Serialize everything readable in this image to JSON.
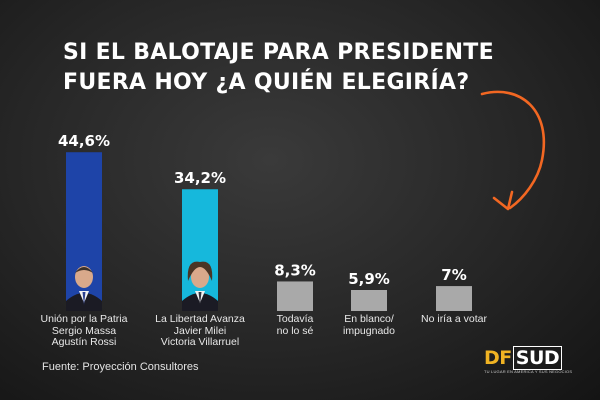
{
  "title": {
    "line1": "SI EL BALOTAJE PARA PRESIDENTE",
    "line2": "FUERA HOY ¿A QUIÉN ELEGIRÍA?"
  },
  "source": "Fuente:  Proyección Consultores",
  "logo": {
    "df": "DF",
    "sud": "SUD",
    "tagline": "TU LUGAR EN AMÉRICA Y SUS NEGOCIOS"
  },
  "colors": {
    "massa": "#1e44a8",
    "milei": "#16b8dc",
    "others": "#a9a9a9",
    "arrow": "#f26722",
    "logo_accent": "#f0b323"
  },
  "chart_data": {
    "type": "bar",
    "categories": [
      [
        "Unión por la Patria",
        "Sergio Massa",
        "Agustín Rossi"
      ],
      [
        "La Libertad Avanza",
        "Javier Milei",
        "Victoria Villarruel"
      ],
      [
        "Todavía",
        "no lo sé"
      ],
      [
        "En blanco/",
        "impugnado"
      ],
      [
        "No iría a votar"
      ]
    ],
    "values": [
      44.6,
      34.2,
      8.3,
      5.9,
      7
    ],
    "value_labels": [
      "44,6%",
      "34,2%",
      "8,3%",
      "5,9%",
      "7%"
    ],
    "bar_colors": [
      "#1e44a8",
      "#16b8dc",
      "#a9a9a9",
      "#a9a9a9",
      "#a9a9a9"
    ],
    "candidate_photos": [
      "man-portrait-photo",
      "man-portrait-photo",
      null,
      null,
      null
    ],
    "ylim": [
      0,
      50
    ],
    "grid": false,
    "legend": "none"
  }
}
